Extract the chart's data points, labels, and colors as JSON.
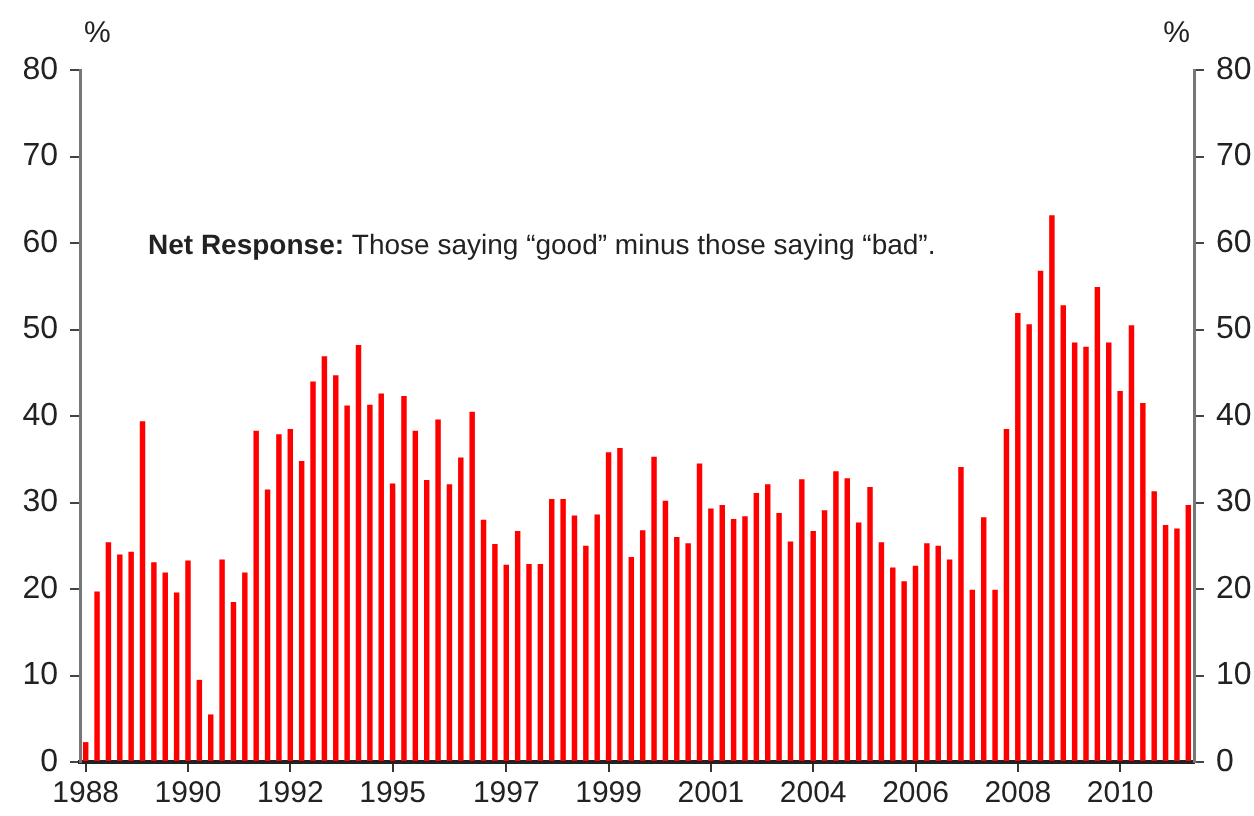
{
  "chart_data": {
    "type": "bar",
    "ylabel": "%",
    "y2label": "%",
    "annotations": [
      "Net Response: Those saying “good” minus those saying “bad”."
    ],
    "categories": [
      "1988",
      null,
      null,
      null,
      null,
      null,
      null,
      null,
      null,
      "1990",
      null,
      null,
      null,
      null,
      null,
      null,
      null,
      null,
      "1992",
      null,
      null,
      null,
      null,
      null,
      null,
      null,
      null,
      "1995",
      null,
      null,
      null,
      null,
      null,
      null,
      null,
      null,
      null,
      "1997",
      null,
      null,
      null,
      null,
      null,
      null,
      null,
      null,
      "1999",
      null,
      null,
      null,
      null,
      null,
      null,
      null,
      null,
      "2001",
      null,
      null,
      null,
      null,
      null,
      null,
      null,
      null,
      "2004",
      null,
      null,
      null,
      null,
      null,
      null,
      null,
      null,
      "2006",
      null,
      null,
      null,
      null,
      null,
      null,
      null,
      null,
      "2008",
      null,
      null,
      null,
      null,
      null,
      null,
      null,
      null,
      "2010",
      null,
      null,
      null,
      null,
      null,
      null
    ],
    "series": [
      {
        "color": "#ff0000",
        "values": [
          2.3,
          19.7,
          25.4,
          24.0,
          24.3,
          39.4,
          23.1,
          21.9,
          19.6,
          23.3,
          9.5,
          5.5,
          23.4,
          18.5,
          21.9,
          38.3,
          31.5,
          37.9,
          38.5,
          34.8,
          44.0,
          46.9,
          44.7,
          41.2,
          48.2,
          41.3,
          42.6,
          32.2,
          42.3,
          38.3,
          32.6,
          39.6,
          32.1,
          35.2,
          40.5,
          28.0,
          25.2,
          22.8,
          26.7,
          22.9,
          22.9,
          30.4,
          30.4,
          28.5,
          25.0,
          28.6,
          35.8,
          36.3,
          23.7,
          26.8,
          35.3,
          30.2,
          26.0,
          25.3,
          34.5,
          29.3,
          29.7,
          28.1,
          28.4,
          31.1,
          32.1,
          28.8,
          25.5,
          32.7,
          26.7,
          29.1,
          33.6,
          32.8,
          27.7,
          31.8,
          25.4,
          22.5,
          20.9,
          22.7,
          25.3,
          25.0,
          23.4,
          34.1,
          19.9,
          28.3,
          19.9,
          38.5,
          51.9,
          50.6,
          56.8,
          63.2,
          52.8,
          48.5,
          48.0,
          54.9,
          48.5,
          42.9,
          50.5,
          41.5,
          31.3,
          27.4,
          27.0,
          29.7
        ]
      }
    ],
    "ylim": [
      0,
      80
    ],
    "yticks": [
      0,
      10,
      20,
      30,
      40,
      50,
      60,
      70,
      80
    ],
    "y2lim": [
      0,
      80
    ],
    "y2ticks": [
      0,
      10,
      20,
      30,
      40,
      50,
      60,
      70,
      80
    ],
    "grid": false,
    "legend": false
  }
}
